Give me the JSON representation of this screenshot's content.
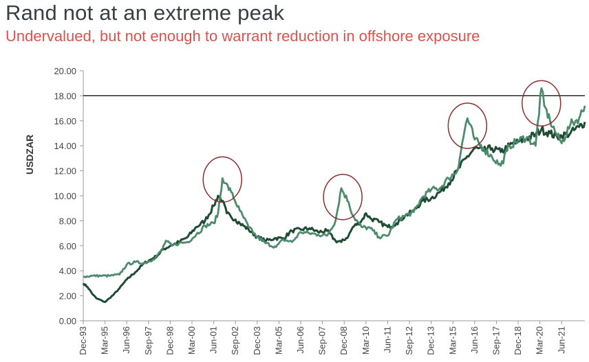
{
  "title": "Rand not at an extreme peak",
  "subtitle": "Undervalued, but not enough to warrant reduction in offshore exposure",
  "colors": {
    "title": "#3a3f44",
    "subtitle": "#d9534f",
    "series_dark": "#1f4a33",
    "series_light": "#4e8b6c",
    "circles": "#8b2e2e",
    "reference_line": "#000000"
  },
  "chart_data": {
    "type": "line",
    "ylabel": "USDZAR",
    "xlabel": "",
    "ylim": [
      0,
      20
    ],
    "xlim": [
      "1993-12",
      "2022-10"
    ],
    "yticks": [
      "0.00",
      "2.00",
      "4.00",
      "6.00",
      "8.00",
      "10.00",
      "12.00",
      "14.00",
      "16.00",
      "18.00",
      "20.00"
    ],
    "xticks": [
      "Dec-93",
      "Mar-95",
      "Jun-96",
      "Sep-97",
      "Dec-98",
      "Mar-00",
      "Jun-01",
      "Sep-02",
      "Dec-03",
      "Mar-05",
      "Jun-06",
      "Sep-07",
      "Dec-08",
      "Mar-10",
      "Jun-11",
      "Sep-12",
      "Dec-13",
      "Mar-15",
      "Jun-16",
      "Sep-17",
      "Dec-18",
      "Mar-20",
      "Jun-21"
    ],
    "reference_line": 18,
    "grid": false,
    "legend": "none",
    "highlight_circles": [
      {
        "date": "2001-12",
        "value": 11.3
      },
      {
        "date": "2008-11",
        "value": 9.9
      },
      {
        "date": "2016-01",
        "value": 15.6
      },
      {
        "date": "2020-04",
        "value": 17.4
      }
    ],
    "series": [
      {
        "dates": [
          "1993-12",
          "1994-03",
          "1994-06",
          "1994-09",
          "1995-01",
          "1995-03",
          "1995-06",
          "1995-09",
          "1996-01",
          "1996-06",
          "1996-12",
          "1997-06",
          "1997-12",
          "1998-03",
          "1998-07",
          "1998-12",
          "1999-06",
          "1999-12",
          "2000-06",
          "2000-12",
          "2001-06",
          "2001-09",
          "2001-12",
          "2002-03",
          "2002-06",
          "2002-09",
          "2002-12",
          "2003-06",
          "2003-12",
          "2004-06",
          "2004-12",
          "2005-06",
          "2005-12",
          "2006-06",
          "2006-12",
          "2007-06",
          "2007-12",
          "2008-06",
          "2008-10",
          "2009-03",
          "2009-06",
          "2009-12",
          "2010-03",
          "2010-06",
          "2010-12",
          "2011-06",
          "2011-12",
          "2012-06",
          "2012-12",
          "2013-06",
          "2013-12",
          "2014-06",
          "2014-12",
          "2015-06",
          "2015-12",
          "2016-06",
          "2016-12",
          "2017-06",
          "2017-12",
          "2018-06",
          "2018-12",
          "2019-06",
          "2019-12",
          "2020-04",
          "2020-10",
          "2021-03",
          "2021-06",
          "2021-12",
          "2022-06",
          "2022-10"
        ],
        "values": [
          3.0,
          2.7,
          2.2,
          1.8,
          1.6,
          1.5,
          1.8,
          2.1,
          2.6,
          3.3,
          3.9,
          4.6,
          5.0,
          5.2,
          5.7,
          6.0,
          6.3,
          6.7,
          7.5,
          8.0,
          9.2,
          10.0,
          9.6,
          8.6,
          8.3,
          8.1,
          7.8,
          7.3,
          6.7,
          6.4,
          6.6,
          6.6,
          7.2,
          7.3,
          7.4,
          7.1,
          7.2,
          6.4,
          6.3,
          6.8,
          7.5,
          8.0,
          8.6,
          8.2,
          7.9,
          7.5,
          7.8,
          8.4,
          8.8,
          9.6,
          9.8,
          10.3,
          11.0,
          12.0,
          13.0,
          13.8,
          13.6,
          13.8,
          13.5,
          14.0,
          14.3,
          14.6,
          14.9,
          15.3,
          15.0,
          14.7,
          14.8,
          15.0,
          15.5,
          15.9
        ]
      },
      {
        "dates": [
          "1993-12",
          "1994-06",
          "1995-01",
          "1995-06",
          "1996-01",
          "1996-06",
          "1996-12",
          "1997-06",
          "1997-12",
          "1998-06",
          "1998-09",
          "1999-01",
          "1999-06",
          "1999-12",
          "2000-06",
          "2000-12",
          "2001-06",
          "2001-09",
          "2001-12",
          "2002-02",
          "2002-06",
          "2002-12",
          "2003-06",
          "2003-12",
          "2004-06",
          "2005-01",
          "2005-06",
          "2005-12",
          "2006-06",
          "2006-12",
          "2007-06",
          "2007-12",
          "2008-06",
          "2008-10",
          "2009-03",
          "2009-06",
          "2009-12",
          "2010-06",
          "2010-12",
          "2011-06",
          "2011-12",
          "2012-06",
          "2012-12",
          "2013-06",
          "2013-12",
          "2014-06",
          "2014-12",
          "2015-06",
          "2015-12",
          "2016-01",
          "2016-06",
          "2016-12",
          "2017-06",
          "2017-12",
          "2018-06",
          "2018-12",
          "2019-06",
          "2019-12",
          "2020-04",
          "2020-06",
          "2020-10",
          "2021-03",
          "2021-06",
          "2021-12",
          "2022-06",
          "2022-10"
        ],
        "values": [
          3.5,
          3.6,
          3.6,
          3.6,
          3.7,
          4.5,
          4.7,
          4.6,
          4.9,
          5.6,
          6.4,
          6.0,
          6.2,
          6.3,
          6.9,
          7.6,
          7.8,
          8.6,
          11.4,
          11.0,
          10.3,
          8.8,
          7.5,
          6.7,
          6.2,
          5.9,
          6.5,
          6.3,
          7.1,
          7.0,
          6.9,
          6.8,
          8.0,
          10.6,
          9.5,
          8.4,
          7.5,
          7.4,
          6.7,
          6.8,
          8.1,
          8.4,
          8.7,
          9.9,
          10.5,
          10.6,
          11.4,
          12.0,
          15.8,
          16.2,
          14.5,
          13.8,
          13.1,
          12.4,
          14.0,
          14.4,
          14.7,
          14.0,
          18.6,
          17.2,
          16.0,
          14.8,
          14.2,
          15.7,
          16.2,
          17.2
        ]
      }
    ]
  }
}
